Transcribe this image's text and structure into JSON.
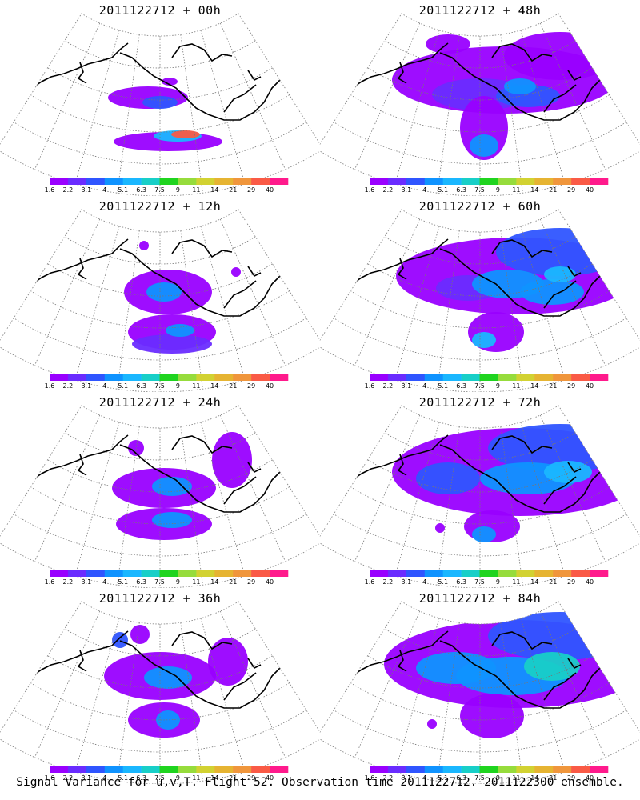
{
  "caption": "Signal Variance for u,v,T. Flight 52. Observation time 2011122712. 2011122300 ensemble.",
  "colorbar": {
    "ticks": [
      "1.6",
      "2.2",
      "3.1",
      "4",
      "5.1",
      "6.3",
      "7.5",
      "9",
      "11",
      "14",
      "21",
      "29",
      "40"
    ],
    "colors": [
      "#9900ff",
      "#6a2cff",
      "#2f55ff",
      "#0f93ff",
      "#1ab7ff",
      "#18cfc8",
      "#1fd41f",
      "#96dc3c",
      "#d2d232",
      "#e6b432",
      "#f0963c",
      "#fa5a46",
      "#ff1a8c"
    ]
  },
  "chart_data": [
    {
      "type": "heatmap",
      "title": "2011122712 + 00h",
      "lead_hours": 0
    },
    {
      "type": "heatmap",
      "title": "2011122712 + 48h",
      "lead_hours": 48
    },
    {
      "type": "heatmap",
      "title": "2011122712 + 12h",
      "lead_hours": 12
    },
    {
      "type": "heatmap",
      "title": "2011122712 + 60h",
      "lead_hours": 60
    },
    {
      "type": "heatmap",
      "title": "2011122712 + 24h",
      "lead_hours": 24
    },
    {
      "type": "heatmap",
      "title": "2011122712 + 72h",
      "lead_hours": 72
    },
    {
      "type": "heatmap",
      "title": "2011122712 + 36h",
      "lead_hours": 36
    },
    {
      "type": "heatmap",
      "title": "2011122712 + 84h",
      "lead_hours": 84
    }
  ]
}
